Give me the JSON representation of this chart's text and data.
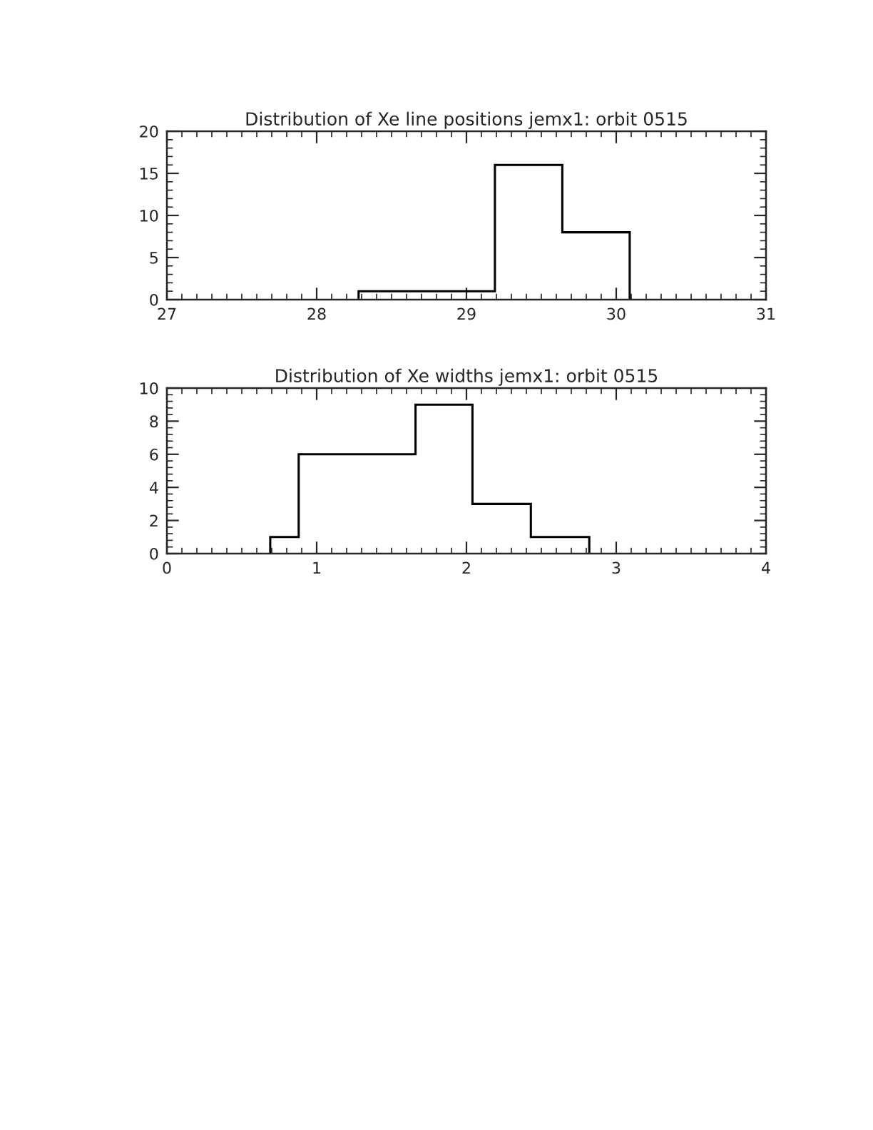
{
  "chart_data": [
    {
      "type": "histogram",
      "title": "Distribution of Xe line positions jemx1: orbit 0515",
      "bins": [
        28.28,
        28.73,
        29.19,
        29.64,
        30.09
      ],
      "values": [
        1,
        1,
        16,
        8
      ],
      "color": "#000000",
      "xlim": [
        27,
        31
      ],
      "xticks": [
        27,
        28,
        29,
        30,
        31
      ],
      "ylim": [
        0,
        20
      ],
      "yticks": [
        0,
        5,
        10,
        15,
        20
      ]
    },
    {
      "type": "histogram",
      "title": "Distribution of Xe widths jemx1: orbit 0515",
      "bins": [
        0.69,
        0.88,
        1.27,
        1.66,
        2.04,
        2.43,
        2.82
      ],
      "values": [
        1,
        6,
        6,
        9,
        3,
        1
      ],
      "color": "#000000",
      "xlim": [
        0,
        4
      ],
      "xticks": [
        0,
        1,
        2,
        3,
        4
      ],
      "ylim": [
        0,
        10
      ],
      "yticks": [
        0,
        2,
        4,
        6,
        8,
        10
      ]
    }
  ]
}
